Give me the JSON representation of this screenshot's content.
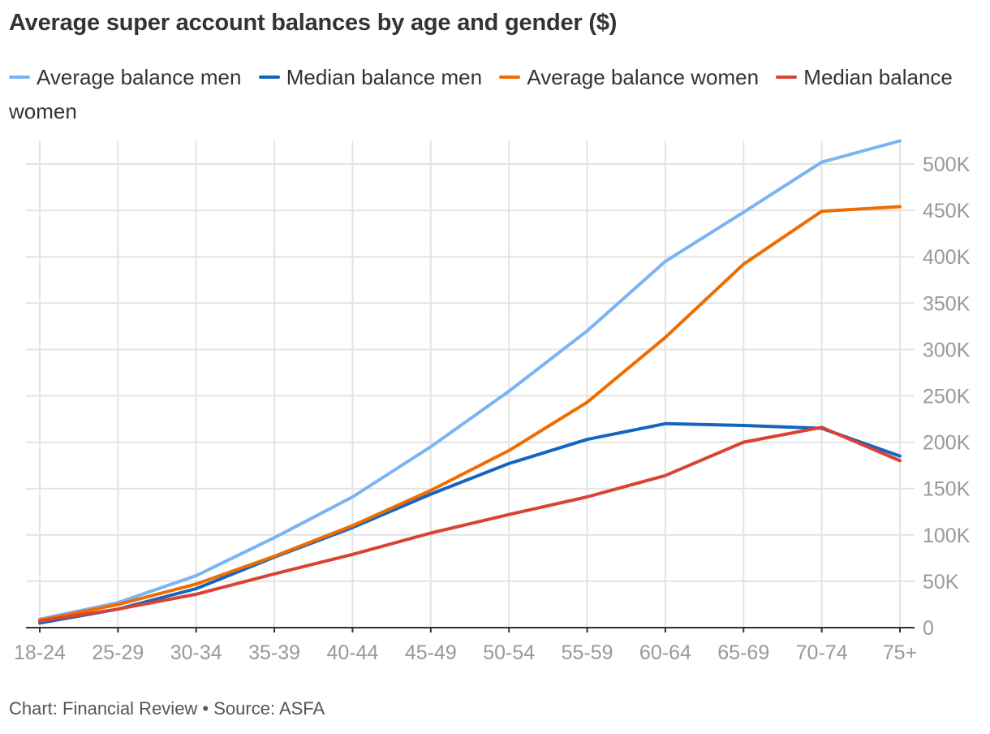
{
  "title": "Average super account balances by age and gender ($)",
  "footer": "Chart: Financial Review • Source: ASFA",
  "chart_data": {
    "type": "line",
    "title": "Average super account balances by age and gender ($)",
    "categories": [
      "18-24",
      "25-29",
      "30-34",
      "35-39",
      "40-44",
      "45-49",
      "50-54",
      "55-59",
      "60-64",
      "65-69",
      "70-74",
      "75+"
    ],
    "y_ticks": [
      0,
      50000,
      100000,
      150000,
      200000,
      250000,
      300000,
      350000,
      400000,
      450000,
      500000
    ],
    "y_tick_labels": [
      "0",
      "50K",
      "100K",
      "150K",
      "200K",
      "250K",
      "300K",
      "350K",
      "400K",
      "450K",
      "500K"
    ],
    "ylim": [
      0,
      525000
    ],
    "y_axis_position": "right",
    "grid": true,
    "legend_position": "top",
    "series": [
      {
        "name": "Average balance men",
        "color": "#7ab4f5",
        "values": [
          9000,
          27000,
          56000,
          97000,
          141000,
          195000,
          255000,
          320000,
          395000,
          448000,
          502000,
          525000
        ]
      },
      {
        "name": "Median balance men",
        "color": "#1565c0",
        "values": [
          5000,
          20000,
          42000,
          76000,
          108000,
          144000,
          177000,
          203000,
          220000,
          218000,
          215000,
          185000
        ]
      },
      {
        "name": "Average balance women",
        "color": "#ef6c00",
        "values": [
          8000,
          25000,
          47000,
          77000,
          110000,
          148000,
          191000,
          243000,
          313000,
          392000,
          449000,
          454000
        ]
      },
      {
        "name": "Median balance women",
        "color": "#d84335",
        "values": [
          7000,
          20000,
          36000,
          58000,
          79000,
          102000,
          122000,
          141000,
          164000,
          200000,
          216000,
          180000
        ]
      }
    ]
  }
}
